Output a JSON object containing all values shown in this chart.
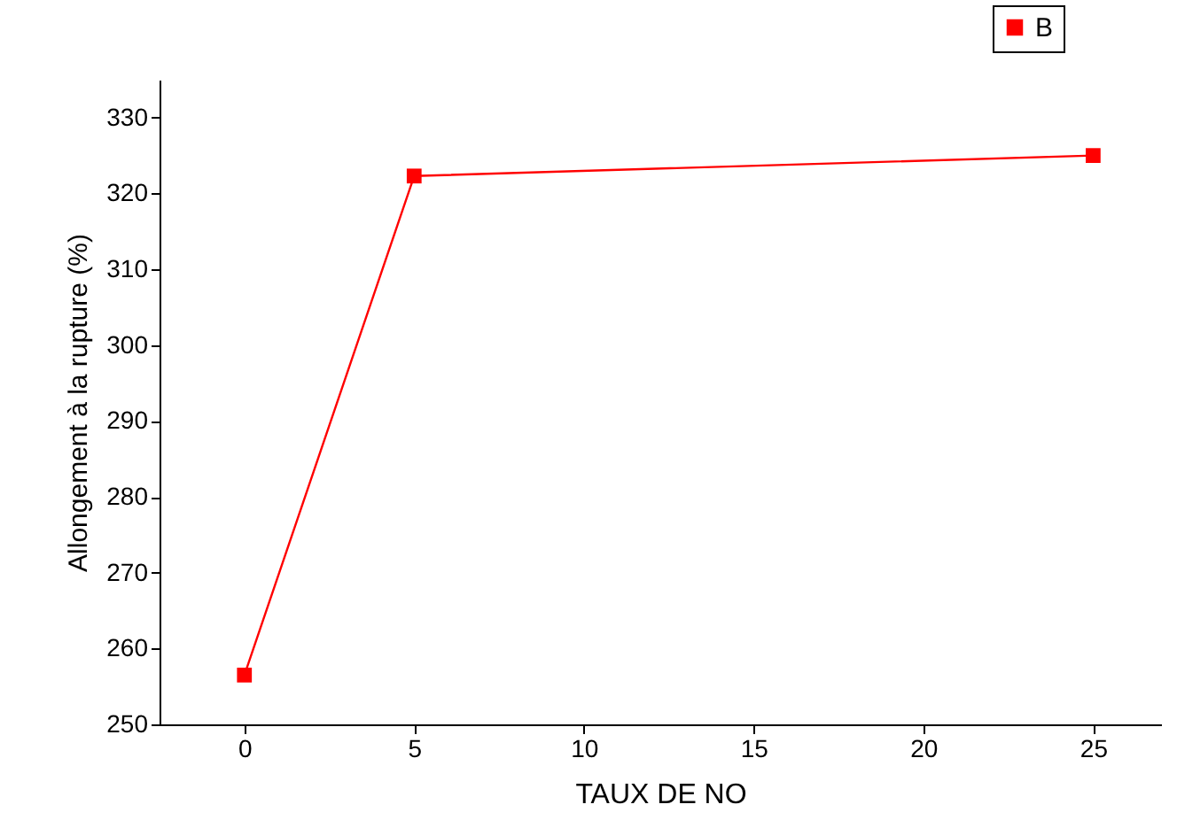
{
  "chart_data": {
    "type": "line",
    "xlabel": "TAUX DE NO",
    "ylabel": "Allongement à la rupture (%)",
    "x": [
      0,
      5,
      25
    ],
    "series": [
      {
        "name": "B",
        "color": "#ff0000",
        "values": [
          256.5,
          322.3,
          325.0
        ]
      }
    ],
    "xlim": [
      -2.5,
      27
    ],
    "xticks": [
      0,
      5,
      10,
      15,
      20,
      25
    ],
    "ylim": [
      250,
      335
    ],
    "yticks": [
      250,
      260,
      270,
      280,
      290,
      300,
      310,
      320,
      330
    ],
    "grid": false,
    "legend": "top right",
    "marker": "square",
    "line_style": "solid"
  }
}
